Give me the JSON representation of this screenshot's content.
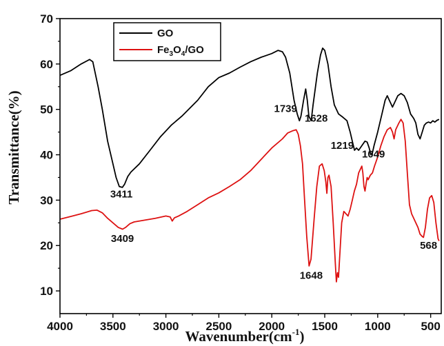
{
  "chart_data": {
    "type": "line",
    "xlabel_main": "Wavenumber(cm",
    "xlabel_sup": "-1",
    "xlabel_end": ")",
    "ylabel": "Transmittance(%)",
    "xlim": [
      4000,
      400
    ],
    "ylim": [
      5,
      70
    ],
    "x_ticks": [
      "4000",
      "3500",
      "3000",
      "2500",
      "2000",
      "1500",
      "1000",
      "500"
    ],
    "x_tick_values": [
      4000,
      3500,
      3000,
      2500,
      2000,
      1500,
      1000,
      500
    ],
    "y_ticks": [
      "10",
      "20",
      "30",
      "40",
      "50",
      "60",
      "70"
    ],
    "y_tick_values": [
      10,
      20,
      30,
      40,
      50,
      60,
      70
    ],
    "legend": {
      "position": "top-left",
      "entries": [
        {
          "label": "GO",
          "color": "#000000"
        },
        {
          "label_parts": [
            "Fe",
            "3",
            "O",
            "4",
            "/GO"
          ],
          "color": "#dd1111"
        }
      ]
    },
    "series": [
      {
        "name": "GO",
        "color": "#000000",
        "points": [
          [
            4000,
            57.5
          ],
          [
            3900,
            58.5
          ],
          [
            3800,
            60
          ],
          [
            3720,
            61
          ],
          [
            3690,
            60.5
          ],
          [
            3640,
            55
          ],
          [
            3600,
            50
          ],
          [
            3550,
            43
          ],
          [
            3500,
            38
          ],
          [
            3470,
            35
          ],
          [
            3440,
            33
          ],
          [
            3411,
            32.8
          ],
          [
            3390,
            33.5
          ],
          [
            3360,
            35.2
          ],
          [
            3330,
            36.2
          ],
          [
            3250,
            38
          ],
          [
            3150,
            41
          ],
          [
            3050,
            44
          ],
          [
            2950,
            46.5
          ],
          [
            2850,
            48.5
          ],
          [
            2700,
            52
          ],
          [
            2600,
            55
          ],
          [
            2500,
            57
          ],
          [
            2400,
            58
          ],
          [
            2300,
            59.3
          ],
          [
            2200,
            60.5
          ],
          [
            2100,
            61.5
          ],
          [
            2000,
            62.3
          ],
          [
            1940,
            63
          ],
          [
            1900,
            62.7
          ],
          [
            1870,
            61.5
          ],
          [
            1830,
            58
          ],
          [
            1790,
            52
          ],
          [
            1760,
            49
          ],
          [
            1739,
            47.5
          ],
          [
            1725,
            48.5
          ],
          [
            1700,
            52
          ],
          [
            1680,
            54.5
          ],
          [
            1665,
            52
          ],
          [
            1650,
            48.5
          ],
          [
            1628,
            47.5
          ],
          [
            1610,
            51
          ],
          [
            1570,
            58
          ],
          [
            1540,
            62
          ],
          [
            1520,
            63.5
          ],
          [
            1500,
            63
          ],
          [
            1470,
            60
          ],
          [
            1440,
            55
          ],
          [
            1410,
            51
          ],
          [
            1370,
            49
          ],
          [
            1330,
            48.3
          ],
          [
            1290,
            47.5
          ],
          [
            1260,
            45
          ],
          [
            1240,
            43
          ],
          [
            1219,
            41
          ],
          [
            1200,
            41.5
          ],
          [
            1180,
            41
          ],
          [
            1150,
            42
          ],
          [
            1120,
            43
          ],
          [
            1100,
            42.8
          ],
          [
            1080,
            41.5
          ],
          [
            1065,
            40
          ],
          [
            1049,
            40.5
          ],
          [
            1035,
            42
          ],
          [
            1000,
            45
          ],
          [
            960,
            49
          ],
          [
            930,
            52
          ],
          [
            910,
            53
          ],
          [
            890,
            52
          ],
          [
            860,
            50.5
          ],
          [
            840,
            51.5
          ],
          [
            810,
            53
          ],
          [
            780,
            53.5
          ],
          [
            750,
            53
          ],
          [
            720,
            51.5
          ],
          [
            690,
            49
          ],
          [
            660,
            48
          ],
          [
            640,
            47
          ],
          [
            620,
            44.5
          ],
          [
            600,
            43.5
          ],
          [
            580,
            45
          ],
          [
            560,
            46.5
          ],
          [
            540,
            47
          ],
          [
            520,
            47.2
          ],
          [
            500,
            47
          ],
          [
            480,
            47.5
          ],
          [
            460,
            47.2
          ],
          [
            440,
            47.6
          ],
          [
            420,
            47.8
          ]
        ]
      },
      {
        "name": "Fe3O4/GO",
        "color": "#dd1111",
        "points": [
          [
            4000,
            25.8
          ],
          [
            3900,
            26.4
          ],
          [
            3800,
            27
          ],
          [
            3700,
            27.7
          ],
          [
            3650,
            27.8
          ],
          [
            3600,
            27.2
          ],
          [
            3550,
            26
          ],
          [
            3500,
            25
          ],
          [
            3450,
            24
          ],
          [
            3409,
            23.6
          ],
          [
            3380,
            24
          ],
          [
            3340,
            24.8
          ],
          [
            3300,
            25.2
          ],
          [
            3200,
            25.6
          ],
          [
            3100,
            26
          ],
          [
            3000,
            26.5
          ],
          [
            2960,
            26.3
          ],
          [
            2940,
            25.4
          ],
          [
            2920,
            26.1
          ],
          [
            2880,
            26.5
          ],
          [
            2800,
            27.5
          ],
          [
            2700,
            29
          ],
          [
            2600,
            30.5
          ],
          [
            2500,
            31.6
          ],
          [
            2400,
            33
          ],
          [
            2300,
            34.5
          ],
          [
            2200,
            36.5
          ],
          [
            2100,
            39
          ],
          [
            2000,
            41.5
          ],
          [
            1900,
            43.5
          ],
          [
            1850,
            44.8
          ],
          [
            1800,
            45.3
          ],
          [
            1770,
            45.5
          ],
          [
            1750,
            44.5
          ],
          [
            1730,
            42
          ],
          [
            1710,
            38
          ],
          [
            1690,
            30
          ],
          [
            1670,
            22
          ],
          [
            1648,
            15.5
          ],
          [
            1630,
            17
          ],
          [
            1600,
            26
          ],
          [
            1575,
            33
          ],
          [
            1550,
            37.5
          ],
          [
            1525,
            38
          ],
          [
            1505,
            36.5
          ],
          [
            1490,
            34
          ],
          [
            1480,
            31.5
          ],
          [
            1470,
            35
          ],
          [
            1460,
            35.5
          ],
          [
            1440,
            33
          ],
          [
            1420,
            25
          ],
          [
            1400,
            16
          ],
          [
            1390,
            12
          ],
          [
            1380,
            14
          ],
          [
            1370,
            13
          ],
          [
            1360,
            17
          ],
          [
            1340,
            25
          ],
          [
            1320,
            27.5
          ],
          [
            1300,
            27
          ],
          [
            1280,
            26.5
          ],
          [
            1260,
            28
          ],
          [
            1240,
            30
          ],
          [
            1220,
            32
          ],
          [
            1200,
            33.5
          ],
          [
            1180,
            36
          ],
          [
            1160,
            37
          ],
          [
            1150,
            37.5
          ],
          [
            1140,
            36
          ],
          [
            1130,
            33
          ],
          [
            1120,
            32
          ],
          [
            1110,
            33.5
          ],
          [
            1100,
            35
          ],
          [
            1090,
            34.5
          ],
          [
            1070,
            35.5
          ],
          [
            1050,
            36
          ],
          [
            1030,
            37.5
          ],
          [
            1000,
            39.5
          ],
          [
            970,
            42
          ],
          [
            940,
            44
          ],
          [
            910,
            45.5
          ],
          [
            880,
            46
          ],
          [
            860,
            45
          ],
          [
            845,
            43.5
          ],
          [
            830,
            45.5
          ],
          [
            800,
            47
          ],
          [
            780,
            47.8
          ],
          [
            760,
            47
          ],
          [
            740,
            43
          ],
          [
            720,
            36
          ],
          [
            700,
            29
          ],
          [
            680,
            27
          ],
          [
            660,
            26
          ],
          [
            640,
            25
          ],
          [
            620,
            24
          ],
          [
            600,
            22.5
          ],
          [
            580,
            22
          ],
          [
            568,
            21.8
          ],
          [
            550,
            24
          ],
          [
            530,
            28
          ],
          [
            510,
            30.5
          ],
          [
            490,
            31
          ],
          [
            470,
            29.5
          ],
          [
            450,
            25
          ],
          [
            430,
            21.5
          ],
          [
            420,
            21
          ]
        ]
      }
    ],
    "annotations": [
      {
        "text": "3411",
        "x": 3420,
        "y": 30.6
      },
      {
        "text": "3409",
        "x": 3410,
        "y": 20.8
      },
      {
        "text": "1739",
        "x": 1870,
        "y": 49.4
      },
      {
        "text": "1628",
        "x": 1580,
        "y": 47.3
      },
      {
        "text": "1219",
        "x": 1335,
        "y": 41.3
      },
      {
        "text": "1049",
        "x": 1040,
        "y": 39.4
      },
      {
        "text": "1648",
        "x": 1628,
        "y": 12.7
      },
      {
        "text": "568",
        "x": 520,
        "y": 19.3
      }
    ]
  }
}
